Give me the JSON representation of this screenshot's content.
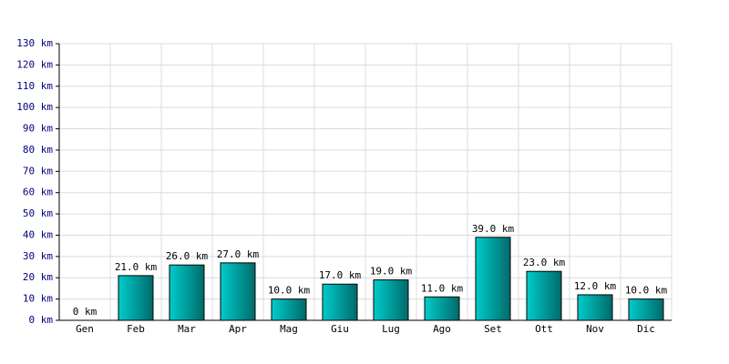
{
  "chart_data": {
    "type": "bar",
    "categories": [
      "Gen",
      "Feb",
      "Mar",
      "Apr",
      "Mag",
      "Giu",
      "Lug",
      "Ago",
      "Set",
      "Ott",
      "Nov",
      "Dic"
    ],
    "values": [
      0,
      21,
      26,
      27,
      10,
      17,
      19,
      11,
      39,
      23,
      12,
      10
    ],
    "value_labels": [
      "0 km",
      "21.0 km",
      "26.0 km",
      "27.0 km",
      "10.0 km",
      "17.0 km",
      "19.0 km",
      "11.0 km",
      "39.0 km",
      "23.0 km",
      "12.0 km",
      "10.0 km"
    ],
    "color": "#00cccc",
    "ylim": [
      0,
      130
    ],
    "yticks": [
      {
        "value": 0,
        "label": "0 km"
      },
      {
        "value": 10,
        "label": "10 km"
      },
      {
        "value": 20,
        "label": "20 km"
      },
      {
        "value": 30,
        "label": "30 km"
      },
      {
        "value": 40,
        "label": "40 km"
      },
      {
        "value": 50,
        "label": "50 km"
      },
      {
        "value": 60,
        "label": "60 km"
      },
      {
        "value": 70,
        "label": "70 km"
      },
      {
        "value": 80,
        "label": "80 km"
      },
      {
        "value": 90,
        "label": "90 km"
      },
      {
        "value": 100,
        "label": "100 km"
      },
      {
        "value": 110,
        "label": "110 km"
      },
      {
        "value": 120,
        "label": "120 km"
      },
      {
        "value": 130,
        "label": "130 km"
      }
    ],
    "grid": true
  }
}
